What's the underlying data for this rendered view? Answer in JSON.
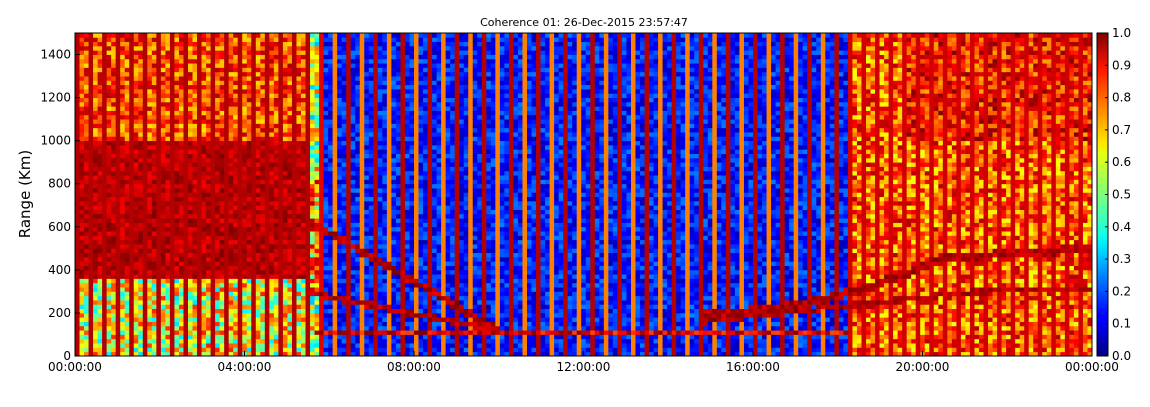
{
  "chart_data": {
    "type": "heatmap",
    "title": "Coherence 01: 26-Dec-2015 23:57:47",
    "xlabel": "",
    "ylabel": "Range (Km)",
    "x_ticks": [
      "00:00:00",
      "04:00:00",
      "08:00:00",
      "12:00:00",
      "16:00:00",
      "20:00:00",
      "00:00:00"
    ],
    "x_range_hours": [
      0,
      24
    ],
    "y_ticks": [
      "0",
      "200",
      "400",
      "600",
      "800",
      "1000",
      "1200",
      "1400"
    ],
    "ylim": [
      0,
      1500
    ],
    "colorbar": {
      "ticks": [
        "0.0",
        "0.1",
        "0.2",
        "0.3",
        "0.4",
        "0.5",
        "0.6",
        "0.7",
        "0.8",
        "0.9",
        "1.0"
      ],
      "range": [
        0,
        1
      ],
      "colormap": "jet"
    },
    "grid": false,
    "features": {
      "day_low_coherence_hours": [
        5.9,
        18.2
      ],
      "night_high_coherence_band_km": [
        370,
        1000
      ],
      "descending_trace_hours": [
        5.6,
        10.0
      ],
      "ascending_trace_hours": [
        14.8,
        24.0
      ],
      "sporadic_layer_km": 110
    }
  }
}
